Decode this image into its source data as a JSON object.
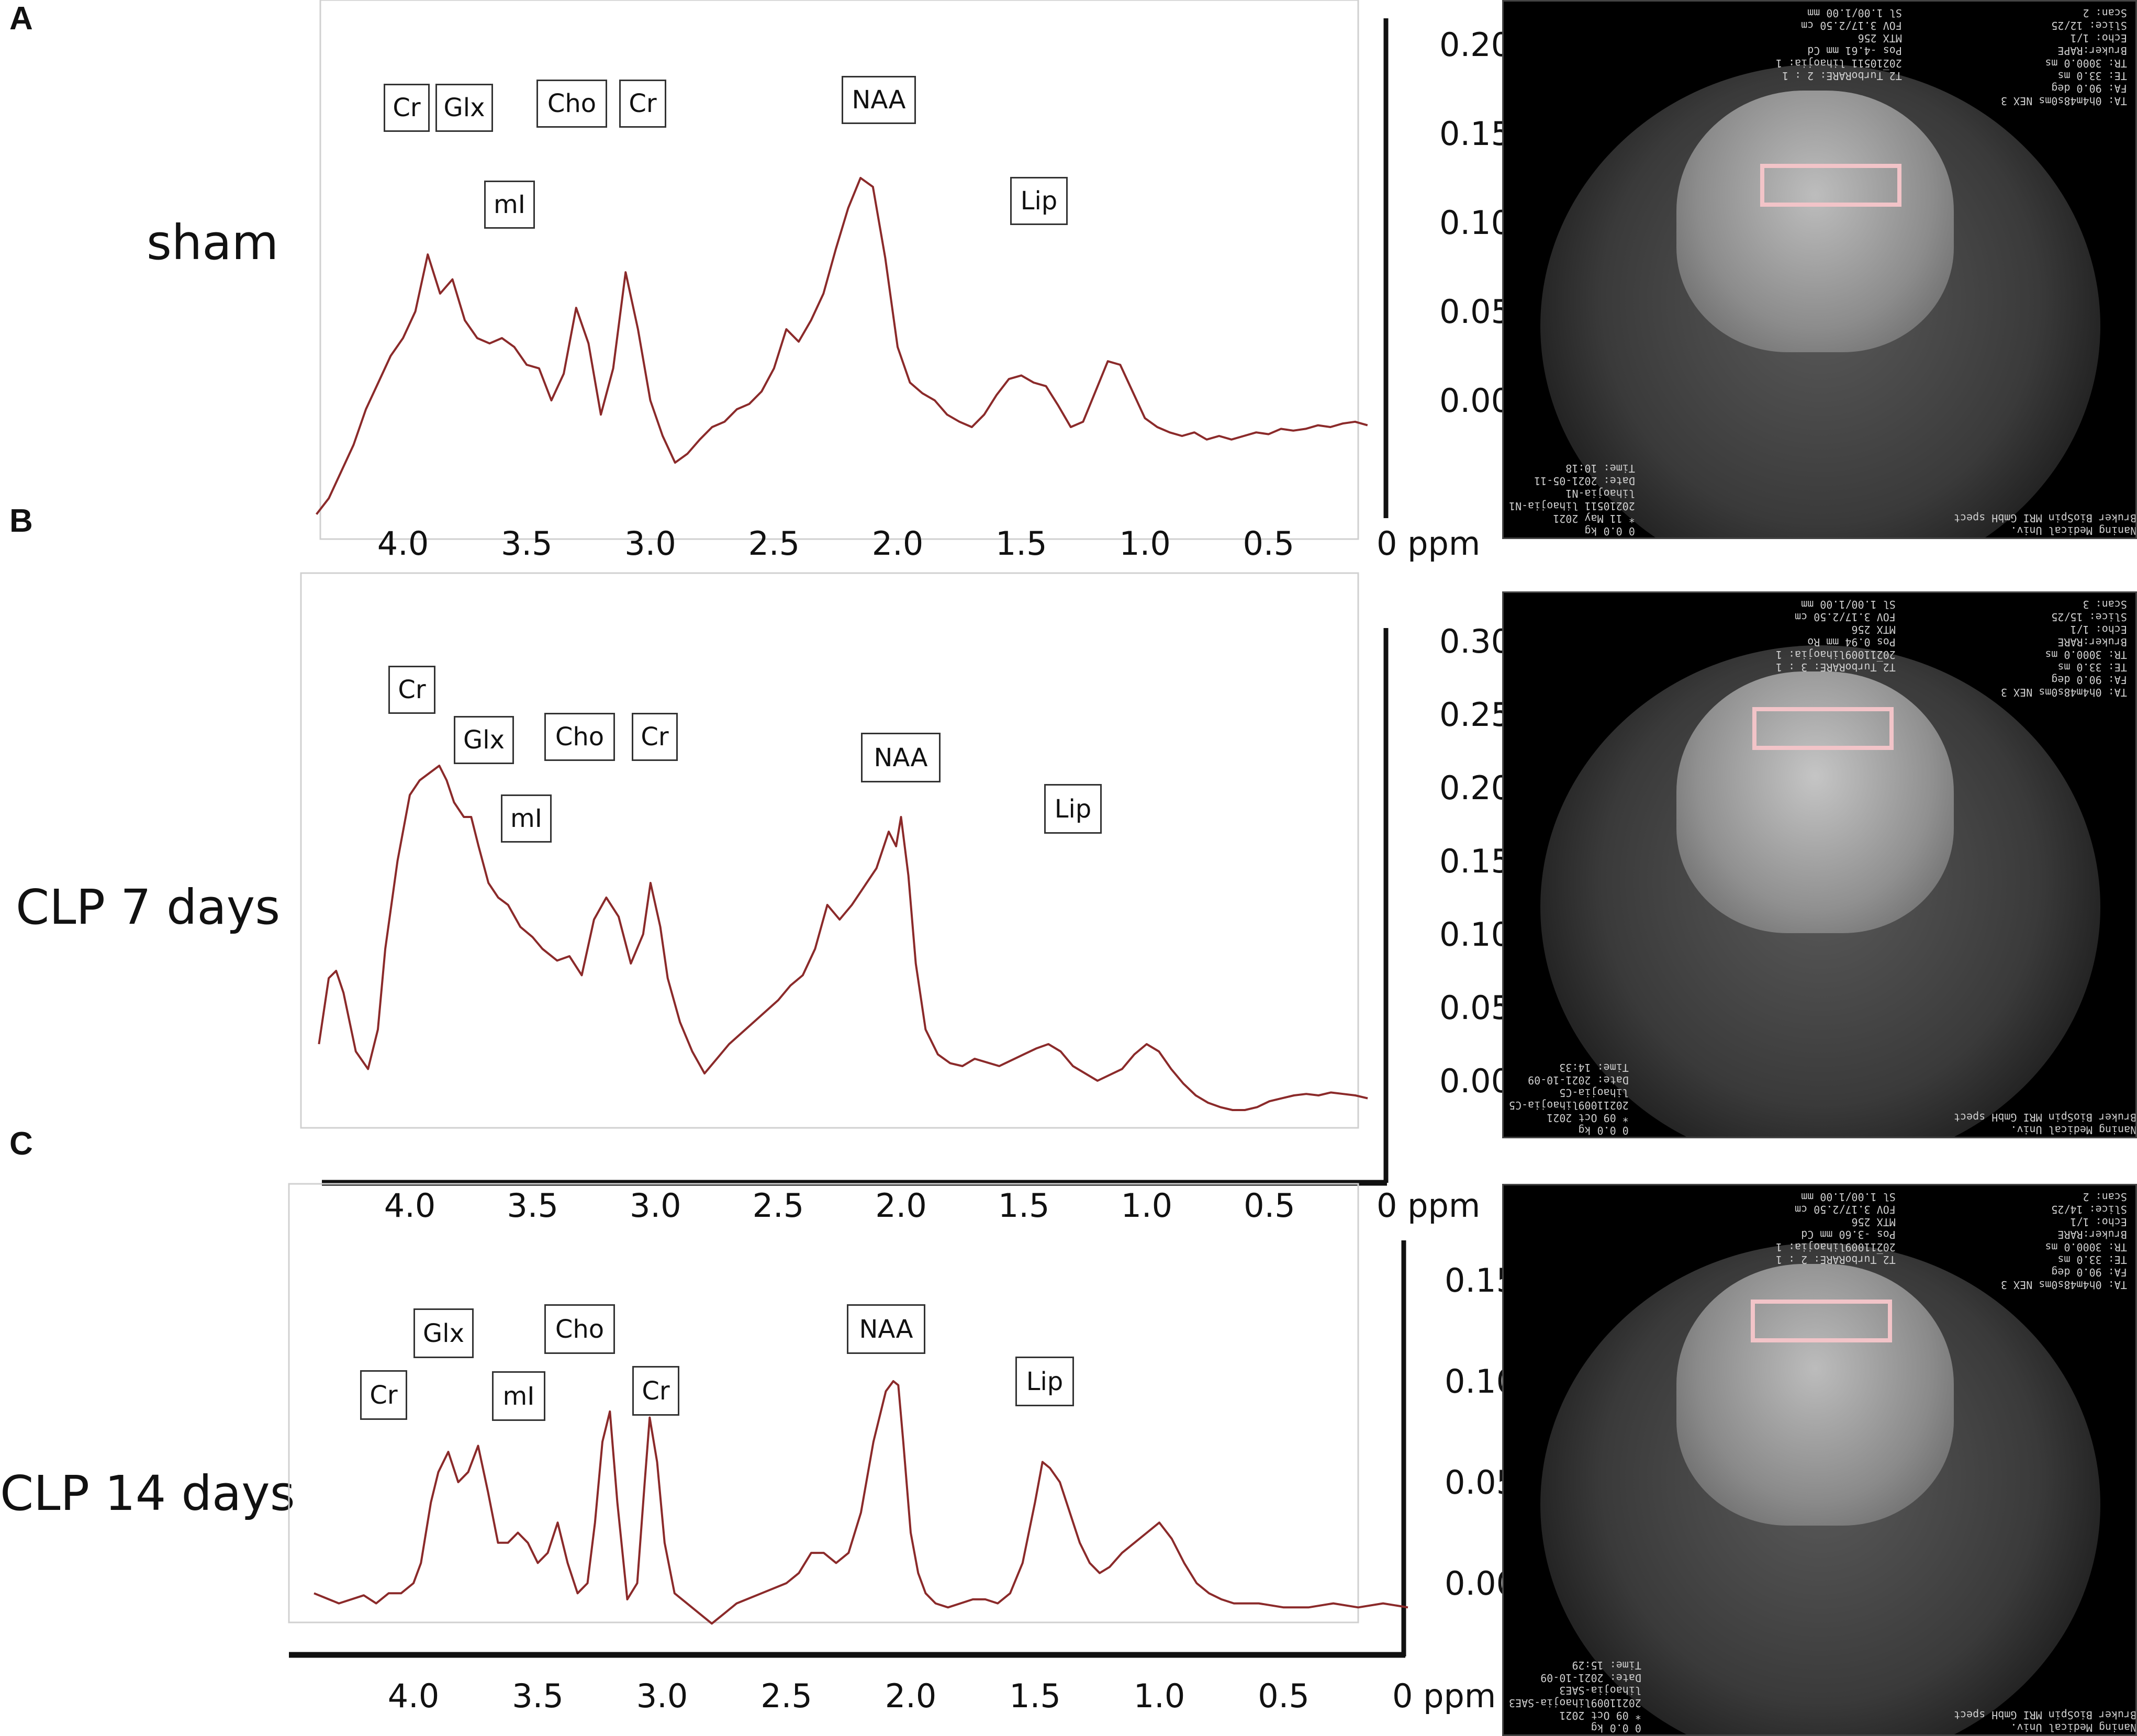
{
  "panels": [
    {
      "letter": "A",
      "group": "sham",
      "mri": {
        "top_left_text": "TA: 0h4m48s0ms NEX 3\nFA: 90.0 deg\nTE: 33.0 ms\nTR: 3000.0 ms\nBruker:RAPE\nEcho: 1/1\nSlice: 12/25\nScan: 2",
        "top_right_text": "T2_TurboRARE: 2 : 1\n20210511 lihaojia: 1\nPos -4.61 mm Cd\nMTX 256\nFOV 3.17/2.50 cm\nSl 1.00/1.00 mm",
        "bottom_left_text": "Naning Medical Univ.\nBruker BioSpin MRI GmbH spect",
        "bottom_right_text": "0 0.0 kg\n* 11 May 2021\n20210511 lihaojia-N1\nlihaojia-N1\nDate: 2021-05-11\nTime: 10:18"
      }
    },
    {
      "letter": "B",
      "group": "CLP 7 days",
      "mri": {
        "top_left_text": "TA: 0h4m48s0ms NEX 3\nFA: 90.0 deg\nTE: 33.0 ms\nTR: 3000.0 ms\nBruker:RARE\nEcho: 1/1\nSlice: 15/25\nScan: 3",
        "top_right_text": "T2_TurboRARE: 3 : 1\n20211009lihaojia: 1\nPos 0.94 mm Ro\nMTX 256\nFOV 3.17/2.50 cm\nSl 1.00/1.00 mm",
        "bottom_left_text": "Naning Medical Univ.\nBruker BioSpin MRI GmbH spect",
        "bottom_right_text": "0 0.0 kg\n* 09 Oct 2021\n20211009lihaojia-C5\nlihaojia-C5\nDate: 2021-10-09\nTime: 14:33"
      }
    },
    {
      "letter": "C",
      "group": "CLP 14 days",
      "mri": {
        "top_left_text": "TA: 0h4m48s0ms NEX 3\nFA: 90.0 deg\nTE: 33.0 ms\nTR: 3000.0 ms\nBruker:RARE\nEcho: 1/1\nSlice: 14/25\nScan: 2",
        "top_right_text": "T2_TurboRARE: 2 : 1\n20211009lihaojia: 1\nPos -3.60 mm Cd\nMTX 256\nFOV 3.17/2.50 cm\nSl 1.00/1.00 mm",
        "bottom_left_text": "Naning Medical Univ.\nBruker BioSpin MRI GmbH spect",
        "bottom_right_text": "0 0.0 kg\n* 09 Oct 2021\n20211009lihaojia-SAE3\nlihaojia-SAE3\nDate: 2021-10-09\nTime: 15:29"
      }
    }
  ],
  "colors": {
    "trace": "#8b2a2a",
    "axis": "#111111",
    "roi": "#f2c4c8"
  },
  "chart_data": [
    {
      "type": "line",
      "title": "",
      "xlabel": "ppm",
      "ylabel": "",
      "x_ticks": [
        "4.0",
        "3.5",
        "3.0",
        "2.5",
        "2.0",
        "1.5",
        "1.0",
        "0.5",
        "0 ppm"
      ],
      "x_tick_values": [
        4.0,
        3.5,
        3.0,
        2.5,
        2.0,
        1.5,
        1.0,
        0.5,
        0
      ],
      "y_ticks": [
        "0.20",
        "0.15",
        "0.10",
        "0.05",
        "0.00"
      ],
      "y_tick_values": [
        0.2,
        0.15,
        0.1,
        0.05,
        0.0
      ],
      "xlim": [
        4.35,
        0.0
      ],
      "ylim": [
        -0.064,
        0.21
      ],
      "peak_labels": [
        "Cr",
        "Glx",
        "Cho",
        "Cr",
        "NAA",
        "mI",
        "Lip"
      ],
      "series": [
        {
          "x": [
            4.35,
            4.3,
            4.25,
            4.2,
            4.15,
            4.1,
            4.05,
            4.0,
            3.95,
            3.9,
            3.85,
            3.8,
            3.75,
            3.7,
            3.65,
            3.6,
            3.55,
            3.5,
            3.45,
            3.4,
            3.35,
            3.3,
            3.25,
            3.2,
            3.15,
            3.1,
            3.05,
            3.0,
            2.95,
            2.9,
            2.85,
            2.8,
            2.75,
            2.7,
            2.65,
            2.6,
            2.55,
            2.5,
            2.45,
            2.4,
            2.35,
            2.3,
            2.25,
            2.2,
            2.15,
            2.1,
            2.05,
            2.0,
            1.95,
            1.9,
            1.85,
            1.8,
            1.75,
            1.7,
            1.65,
            1.6,
            1.55,
            1.5,
            1.45,
            1.4,
            1.35,
            1.3,
            1.25,
            1.2,
            1.15,
            1.1,
            1.05,
            1.0,
            0.95,
            0.9,
            0.85,
            0.8,
            0.75,
            0.7,
            0.65,
            0.6,
            0.55,
            0.5,
            0.45,
            0.4,
            0.35,
            0.3,
            0.25,
            0.2,
            0.15,
            0.1
          ],
          "y": [
            -0.064,
            -0.055,
            -0.04,
            -0.025,
            -0.005,
            0.01,
            0.025,
            0.035,
            0.05,
            0.082,
            0.06,
            0.068,
            0.045,
            0.035,
            0.032,
            0.035,
            0.03,
            0.02,
            0.018,
            0.0,
            0.015,
            0.052,
            0.032,
            -0.008,
            0.018,
            0.072,
            0.04,
            0.0,
            -0.02,
            -0.035,
            -0.03,
            -0.022,
            -0.015,
            -0.012,
            -0.005,
            -0.002,
            0.005,
            0.018,
            0.04,
            0.033,
            0.045,
            0.06,
            0.085,
            0.108,
            0.125,
            0.12,
            0.08,
            0.03,
            0.01,
            0.004,
            0.0,
            -0.008,
            -0.012,
            -0.015,
            -0.008,
            0.003,
            0.012,
            0.014,
            0.01,
            0.008,
            -0.003,
            -0.015,
            -0.012,
            0.005,
            0.022,
            0.02,
            0.005,
            -0.01,
            -0.015,
            -0.018,
            -0.02,
            -0.018,
            -0.022,
            -0.02,
            -0.022,
            -0.02,
            -0.018,
            -0.019,
            -0.016,
            -0.017,
            -0.016,
            -0.014,
            -0.015,
            -0.013,
            -0.012,
            -0.014
          ]
        }
      ]
    },
    {
      "type": "line",
      "title": "",
      "xlabel": "ppm",
      "ylabel": "",
      "x_ticks": [
        "4.0",
        "3.5",
        "3.0",
        "2.5",
        "2.0",
        "1.5",
        "1.0",
        "0.5",
        "0 ppm"
      ],
      "x_tick_values": [
        4.0,
        3.5,
        3.0,
        2.5,
        2.0,
        1.5,
        1.0,
        0.5,
        0
      ],
      "y_ticks": [
        "0.30",
        "0.25",
        "0.20",
        "0.15",
        "0.10",
        "0.05",
        "0.00"
      ],
      "y_tick_values": [
        0.3,
        0.25,
        0.2,
        0.15,
        0.1,
        0.05,
        0.0
      ],
      "xlim": [
        4.35,
        0.0
      ],
      "ylim": [
        -0.035,
        0.32
      ],
      "peak_labels": [
        "Cr",
        "Glx",
        "Cho",
        "Cr",
        "NAA",
        "mI",
        "Lip"
      ],
      "series": [
        {
          "x": [
            4.37,
            4.33,
            4.3,
            4.27,
            4.22,
            4.17,
            4.13,
            4.1,
            4.05,
            4.0,
            3.96,
            3.92,
            3.88,
            3.85,
            3.82,
            3.78,
            3.75,
            3.72,
            3.68,
            3.64,
            3.6,
            3.55,
            3.5,
            3.46,
            3.4,
            3.35,
            3.3,
            3.25,
            3.2,
            3.15,
            3.1,
            3.05,
            3.02,
            2.98,
            2.95,
            2.9,
            2.85,
            2.8,
            2.75,
            2.7,
            2.6,
            2.5,
            2.45,
            2.4,
            2.35,
            2.3,
            2.25,
            2.2,
            2.1,
            2.05,
            2.02,
            2.0,
            1.97,
            1.94,
            1.9,
            1.85,
            1.8,
            1.75,
            1.7,
            1.6,
            1.5,
            1.45,
            1.4,
            1.35,
            1.3,
            1.25,
            1.2,
            1.1,
            1.05,
            1.0,
            0.95,
            0.9,
            0.85,
            0.8,
            0.75,
            0.7,
            0.65,
            0.6,
            0.55,
            0.5,
            0.45,
            0.4,
            0.35,
            0.3,
            0.25,
            0.2,
            0.15,
            0.1
          ],
          "y": [
            0.025,
            0.07,
            0.075,
            0.06,
            0.02,
            0.008,
            0.035,
            0.09,
            0.15,
            0.195,
            0.205,
            0.21,
            0.215,
            0.205,
            0.19,
            0.18,
            0.18,
            0.16,
            0.135,
            0.125,
            0.12,
            0.105,
            0.098,
            0.09,
            0.082,
            0.085,
            0.072,
            0.11,
            0.125,
            0.112,
            0.08,
            0.1,
            0.135,
            0.105,
            0.07,
            0.04,
            0.02,
            0.005,
            0.015,
            0.025,
            0.04,
            0.055,
            0.065,
            0.072,
            0.09,
            0.12,
            0.11,
            0.12,
            0.145,
            0.17,
            0.16,
            0.18,
            0.14,
            0.08,
            0.035,
            0.018,
            0.012,
            0.01,
            0.015,
            0.01,
            0.018,
            0.022,
            0.025,
            0.02,
            0.01,
            0.005,
            0.0,
            0.008,
            0.018,
            0.025,
            0.02,
            0.008,
            -0.002,
            -0.01,
            -0.015,
            -0.018,
            -0.02,
            -0.02,
            -0.018,
            -0.014,
            -0.012,
            -0.01,
            -0.009,
            -0.01,
            -0.008,
            -0.009,
            -0.01,
            -0.012
          ]
        }
      ]
    },
    {
      "type": "line",
      "title": "",
      "xlabel": "ppm",
      "ylabel": "",
      "x_ticks": [
        "4.0",
        "3.5",
        "3.0",
        "2.5",
        "2.0",
        "1.5",
        "1.0",
        "0.5",
        "0 ppm"
      ],
      "x_tick_values": [
        4.0,
        3.5,
        3.0,
        2.5,
        2.0,
        1.5,
        1.0,
        0.5,
        0
      ],
      "y_ticks": [
        "0.15",
        "0.10",
        "0.05",
        "0.00"
      ],
      "y_tick_values": [
        0.15,
        0.1,
        0.05,
        0.0
      ],
      "xlim": [
        4.4,
        0.0
      ],
      "ylim": [
        -0.04,
        0.16
      ],
      "peak_labels": [
        "Cr",
        "Glx",
        "mI",
        "Cho",
        "Cr",
        "NAA",
        "Lip"
      ],
      "series": [
        {
          "x": [
            4.4,
            4.3,
            4.2,
            4.15,
            4.1,
            4.05,
            4.0,
            3.97,
            3.93,
            3.9,
            3.86,
            3.82,
            3.78,
            3.74,
            3.7,
            3.66,
            3.62,
            3.58,
            3.54,
            3.5,
            3.46,
            3.42,
            3.38,
            3.34,
            3.3,
            3.27,
            3.24,
            3.21,
            3.18,
            3.14,
            3.1,
            3.07,
            3.05,
            3.02,
            2.99,
            2.95,
            2.9,
            2.85,
            2.8,
            2.75,
            2.7,
            2.6,
            2.5,
            2.45,
            2.4,
            2.35,
            2.3,
            2.25,
            2.2,
            2.15,
            2.1,
            2.07,
            2.05,
            2.03,
            2.0,
            1.97,
            1.94,
            1.9,
            1.85,
            1.8,
            1.75,
            1.7,
            1.65,
            1.6,
            1.55,
            1.5,
            1.47,
            1.44,
            1.4,
            1.36,
            1.32,
            1.28,
            1.24,
            1.2,
            1.15,
            1.1,
            1.05,
            1.0,
            0.95,
            0.9,
            0.85,
            0.8,
            0.75,
            0.7,
            0.6,
            0.5,
            0.4,
            0.3,
            0.2,
            0.1,
            0.0
          ],
          "y": [
            -0.005,
            -0.01,
            -0.006,
            -0.01,
            -0.005,
            -0.005,
            0.0,
            0.01,
            0.04,
            0.055,
            0.065,
            0.05,
            0.055,
            0.068,
            0.045,
            0.02,
            0.02,
            0.025,
            0.02,
            0.01,
            0.015,
            0.03,
            0.01,
            -0.005,
            0.0,
            0.03,
            0.07,
            0.085,
            0.04,
            -0.008,
            0.0,
            0.05,
            0.082,
            0.06,
            0.02,
            -0.005,
            -0.01,
            -0.015,
            -0.02,
            -0.015,
            -0.01,
            -0.005,
            0.0,
            0.005,
            0.015,
            0.015,
            0.01,
            0.015,
            0.035,
            0.07,
            0.095,
            0.1,
            0.098,
            0.07,
            0.025,
            0.005,
            -0.005,
            -0.01,
            -0.012,
            -0.01,
            -0.008,
            -0.008,
            -0.01,
            -0.005,
            0.01,
            0.04,
            0.06,
            0.057,
            0.05,
            0.035,
            0.02,
            0.01,
            0.005,
            0.008,
            0.015,
            0.02,
            0.025,
            0.03,
            0.022,
            0.01,
            0.0,
            -0.005,
            -0.008,
            -0.01,
            -0.01,
            -0.012,
            -0.012,
            -0.01,
            -0.012,
            -0.01,
            -0.012
          ]
        }
      ]
    }
  ]
}
